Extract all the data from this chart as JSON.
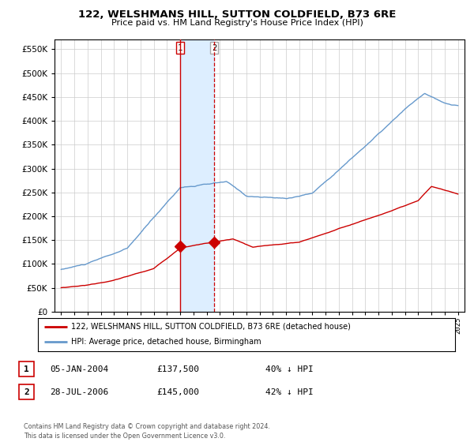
{
  "title": "122, WELSHMANS HILL, SUTTON COLDFIELD, B73 6RE",
  "subtitle": "Price paid vs. HM Land Registry's House Price Index (HPI)",
  "legend_line1": "122, WELSHMANS HILL, SUTTON COLDFIELD, B73 6RE (detached house)",
  "legend_line2": "HPI: Average price, detached house, Birmingham",
  "table_rows": [
    {
      "num": "1",
      "date": "05-JAN-2004",
      "price": "£137,500",
      "hpi": "40% ↓ HPI"
    },
    {
      "num": "2",
      "date": "28-JUL-2006",
      "price": "£145,000",
      "hpi": "42% ↓ HPI"
    }
  ],
  "footnote": "Contains HM Land Registry data © Crown copyright and database right 2024.\nThis data is licensed under the Open Government Licence v3.0.",
  "sale1_date_num": 2004.01,
  "sale2_date_num": 2006.57,
  "sale1_price": 137500,
  "sale2_price": 145000,
  "red_line_color": "#cc0000",
  "blue_line_color": "#6699cc",
  "shade_color": "#ddeeff",
  "vline1_color": "#cc0000",
  "vline2_color": "#cc0000",
  "background_color": "#ffffff",
  "grid_color": "#cccccc",
  "ylim_min": 0,
  "ylim_max": 570000,
  "xlim_min": 1994.5,
  "xlim_max": 2025.5
}
